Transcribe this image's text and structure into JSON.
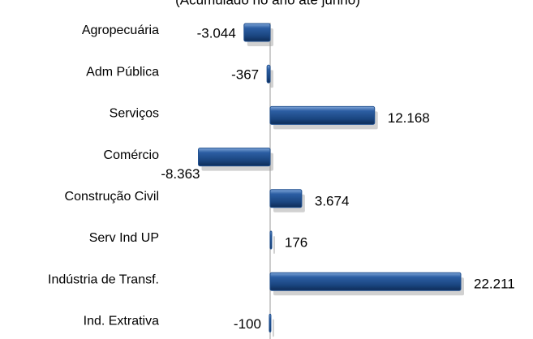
{
  "chart_data": {
    "type": "bar",
    "orientation": "horizontal",
    "subtitle": "(Acumulado no ano até junho)",
    "categories": [
      "Agropecuária",
      "Adm Pública",
      "Serviços",
      "Comércio",
      "Construção Civil",
      "Serv Ind UP",
      "Indústria de Transf.",
      "Ind. Extrativa"
    ],
    "values": [
      -3044,
      -367,
      12168,
      -8363,
      3674,
      176,
      22211,
      -100
    ],
    "value_labels": [
      "-3.044",
      "-367",
      "12.168",
      "-8.363",
      "3.674",
      "176",
      "22.211",
      "-100"
    ],
    "color": "#1f4f8f"
  }
}
